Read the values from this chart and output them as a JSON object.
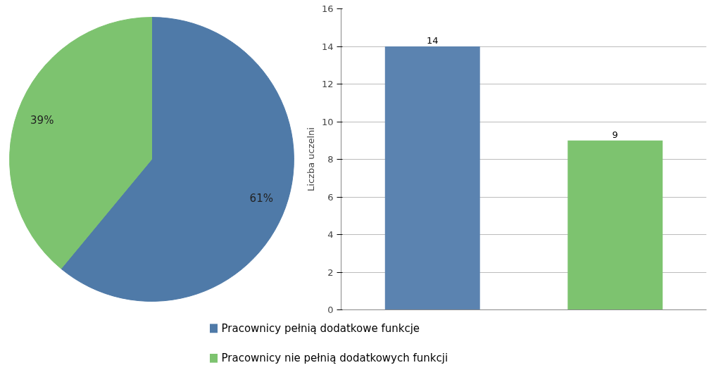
{
  "chart_data": [
    {
      "type": "pie",
      "categories": [
        "Pracownicy  pełnią dodatkowe funkcje",
        "Pracownicy nie pełnią dodatkowych funkcji"
      ],
      "values": [
        61,
        39
      ],
      "colors": [
        "#4f7aa8",
        "#7dc36f"
      ],
      "value_labels": [
        "61%",
        "39%"
      ],
      "legend": "bottom"
    },
    {
      "type": "bar",
      "categories": [
        null,
        null
      ],
      "values": [
        14,
        9
      ],
      "colors": [
        "#5b83b0",
        "#7dc36f"
      ],
      "ylabel": "Liczba uczelni",
      "ylim": [
        0,
        16
      ],
      "yticks": [
        0,
        2,
        4,
        6,
        8,
        10,
        12,
        14,
        16
      ],
      "grid": "y",
      "data_labels": true
    }
  ]
}
